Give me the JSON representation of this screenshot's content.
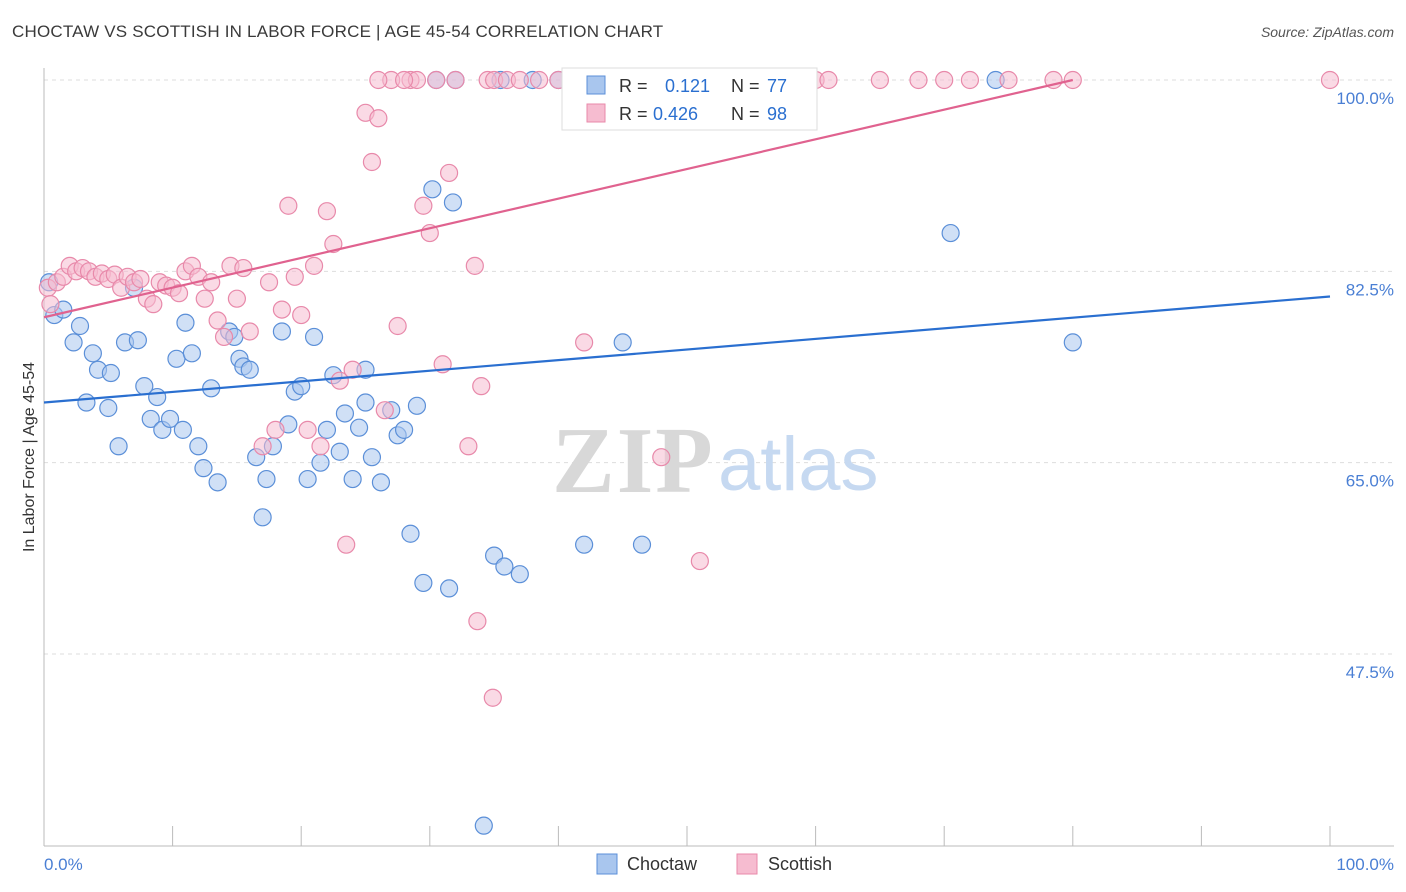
{
  "header": {
    "title": "CHOCTAW VS SCOTTISH IN LABOR FORCE | AGE 45-54 CORRELATION CHART",
    "source": "Source: ZipAtlas.com"
  },
  "watermark": {
    "zip": "ZIP",
    "atlas": "atlas"
  },
  "colors": {
    "choctaw_fill": "#a9c6ee",
    "choctaw_stroke": "#5b8fd8",
    "choctaw_line": "#2a6fd0",
    "scottish_fill": "#f6bcd0",
    "scottish_stroke": "#e889aa",
    "scottish_line": "#e0628f",
    "tick_label": "#4a7fd4",
    "grid": "#dddddd"
  },
  "legend": {
    "rows": [
      {
        "r_label": "R = ",
        "r_value": "0.121",
        "n_label": "N = ",
        "n_value": "77"
      },
      {
        "r_label": "R = ",
        "r_value": "0.426",
        "n_label": "N = ",
        "n_value": "98"
      }
    ]
  },
  "bottom_legend": {
    "items": [
      "Choctaw",
      "Scottish"
    ]
  },
  "chart_data": {
    "type": "scatter",
    "title": "CHOCTAW VS SCOTTISH IN LABOR FORCE | AGE 45-54 CORRELATION CHART",
    "xlabel": "",
    "ylabel": "In Labor Force | Age 45-54",
    "xlim": [
      0,
      100
    ],
    "ylim": [
      31,
      102
    ],
    "x_tick_labels": [
      "0.0%",
      "100.0%"
    ],
    "y_ticks": [
      47.5,
      65.0,
      82.5,
      100.0
    ],
    "y_tick_labels": [
      "47.5%",
      "65.0%",
      "82.5%",
      "100.0%"
    ],
    "grid": true,
    "legend_position": "top-center",
    "series": [
      {
        "name": "Choctaw",
        "trend": {
          "x": [
            0,
            100
          ],
          "y": [
            70.5,
            80.2
          ]
        },
        "points": [
          [
            0.4,
            81.5
          ],
          [
            0.8,
            78.5
          ],
          [
            1.5,
            79.0
          ],
          [
            2.3,
            76.0
          ],
          [
            2.8,
            77.5
          ],
          [
            3.8,
            75.0
          ],
          [
            4.2,
            73.5
          ],
          [
            5.0,
            70.0
          ],
          [
            5.2,
            73.2
          ],
          [
            3.3,
            70.5
          ],
          [
            5.8,
            66.5
          ],
          [
            6.3,
            76.0
          ],
          [
            7.0,
            81.0
          ],
          [
            7.3,
            76.2
          ],
          [
            7.8,
            72.0
          ],
          [
            8.3,
            69.0
          ],
          [
            8.8,
            71.0
          ],
          [
            9.2,
            68.0
          ],
          [
            9.8,
            69.0
          ],
          [
            10.3,
            74.5
          ],
          [
            10.8,
            68.0
          ],
          [
            11.0,
            77.8
          ],
          [
            11.5,
            75.0
          ],
          [
            12.0,
            66.5
          ],
          [
            12.4,
            64.5
          ],
          [
            13.0,
            71.8
          ],
          [
            13.5,
            63.2
          ],
          [
            14.4,
            77.0
          ],
          [
            14.8,
            76.5
          ],
          [
            15.2,
            74.5
          ],
          [
            15.5,
            73.8
          ],
          [
            16.0,
            73.5
          ],
          [
            16.5,
            65.5
          ],
          [
            17.0,
            60.0
          ],
          [
            17.3,
            63.5
          ],
          [
            17.8,
            66.5
          ],
          [
            18.5,
            77.0
          ],
          [
            19.0,
            68.5
          ],
          [
            19.5,
            71.5
          ],
          [
            20.0,
            72.0
          ],
          [
            20.5,
            63.5
          ],
          [
            21.0,
            76.5
          ],
          [
            21.5,
            65.0
          ],
          [
            22.0,
            68.0
          ],
          [
            22.5,
            73.0
          ],
          [
            23.0,
            66.0
          ],
          [
            23.4,
            69.5
          ],
          [
            24.0,
            63.5
          ],
          [
            24.5,
            68.2
          ],
          [
            25.0,
            70.5
          ],
          [
            25.5,
            65.5
          ],
          [
            26.2,
            63.2
          ],
          [
            27.0,
            69.8
          ],
          [
            27.5,
            67.5
          ],
          [
            28.0,
            68.0
          ],
          [
            28.5,
            58.5
          ],
          [
            29.0,
            70.2
          ],
          [
            29.5,
            54.0
          ],
          [
            30.2,
            90.0
          ],
          [
            31.5,
            53.5
          ],
          [
            31.8,
            88.8
          ],
          [
            35.0,
            56.5
          ],
          [
            35.8,
            55.5
          ],
          [
            37.0,
            54.8
          ],
          [
            42.0,
            57.5
          ],
          [
            45.0,
            76.0
          ],
          [
            70.5,
            86.0
          ],
          [
            80.0,
            76.0
          ],
          [
            46.5,
            57.5
          ],
          [
            32.0,
            100.0
          ],
          [
            30.5,
            100.0
          ],
          [
            35.5,
            100.0
          ],
          [
            38.0,
            100.0
          ],
          [
            74.0,
            100.0
          ],
          [
            40.0,
            100.0
          ],
          [
            34.2,
            31.8
          ],
          [
            25.0,
            73.5
          ]
        ]
      },
      {
        "name": "Scottish",
        "trend": {
          "x": [
            0,
            80
          ],
          "y": [
            78.3,
            100.0
          ]
        },
        "points": [
          [
            0.3,
            81.0
          ],
          [
            0.5,
            79.5
          ],
          [
            1.0,
            81.5
          ],
          [
            1.5,
            82.0
          ],
          [
            2.0,
            83.0
          ],
          [
            2.5,
            82.5
          ],
          [
            3.0,
            82.8
          ],
          [
            3.5,
            82.5
          ],
          [
            4.0,
            82.0
          ],
          [
            4.5,
            82.3
          ],
          [
            5.0,
            81.8
          ],
          [
            5.5,
            82.2
          ],
          [
            6.0,
            81.0
          ],
          [
            6.5,
            82.0
          ],
          [
            7.0,
            81.5
          ],
          [
            7.5,
            81.8
          ],
          [
            8.0,
            80.0
          ],
          [
            8.5,
            79.5
          ],
          [
            9.0,
            81.5
          ],
          [
            9.5,
            81.2
          ],
          [
            10.0,
            81.0
          ],
          [
            10.5,
            80.5
          ],
          [
            11.0,
            82.5
          ],
          [
            11.5,
            83.0
          ],
          [
            12.0,
            82.0
          ],
          [
            12.5,
            80.0
          ],
          [
            13.0,
            81.5
          ],
          [
            13.5,
            78.0
          ],
          [
            14.0,
            76.5
          ],
          [
            14.5,
            83.0
          ],
          [
            15.0,
            80.0
          ],
          [
            15.5,
            82.8
          ],
          [
            16.0,
            77.0
          ],
          [
            17.0,
            66.5
          ],
          [
            17.5,
            81.5
          ],
          [
            18.0,
            68.0
          ],
          [
            18.5,
            79.0
          ],
          [
            19.0,
            88.5
          ],
          [
            19.5,
            82.0
          ],
          [
            20.0,
            78.5
          ],
          [
            20.5,
            68.0
          ],
          [
            21.0,
            83.0
          ],
          [
            21.5,
            66.5
          ],
          [
            22.0,
            88.0
          ],
          [
            22.5,
            85.0
          ],
          [
            23.0,
            72.5
          ],
          [
            23.5,
            57.5
          ],
          [
            24.0,
            73.5
          ],
          [
            25.0,
            97.0
          ],
          [
            25.5,
            92.5
          ],
          [
            26.0,
            96.5
          ],
          [
            26.5,
            69.8
          ],
          [
            27.0,
            100.0
          ],
          [
            27.5,
            77.5
          ],
          [
            28.5,
            100.0
          ],
          [
            29.0,
            100.0
          ],
          [
            29.5,
            88.5
          ],
          [
            30.0,
            86.0
          ],
          [
            30.5,
            100.0
          ],
          [
            31.0,
            74.0
          ],
          [
            31.5,
            91.5
          ],
          [
            32.0,
            100.0
          ],
          [
            33.0,
            66.5
          ],
          [
            33.5,
            83.0
          ],
          [
            34.0,
            72.0
          ],
          [
            34.5,
            100.0
          ],
          [
            35.0,
            100.0
          ],
          [
            36.0,
            100.0
          ],
          [
            37.0,
            100.0
          ],
          [
            40.0,
            100.0
          ],
          [
            41.0,
            100.0
          ],
          [
            42.0,
            76.0
          ],
          [
            43.0,
            100.0
          ],
          [
            44.0,
            100.0
          ],
          [
            47.0,
            100.0
          ],
          [
            48.0,
            65.5
          ],
          [
            50.0,
            100.0
          ],
          [
            51.0,
            56.0
          ],
          [
            52.0,
            100.0
          ],
          [
            55.0,
            100.0
          ],
          [
            57.0,
            100.0
          ],
          [
            60.0,
            100.0
          ],
          [
            65.0,
            100.0
          ],
          [
            72.0,
            100.0
          ],
          [
            75.0,
            100.0
          ],
          [
            78.5,
            100.0
          ],
          [
            80.0,
            100.0
          ],
          [
            100.0,
            100.0
          ],
          [
            33.7,
            50.5
          ],
          [
            34.9,
            43.5
          ],
          [
            28.0,
            100.0
          ],
          [
            26.0,
            100.0
          ],
          [
            38.5,
            100.0
          ],
          [
            45.0,
            100.0
          ],
          [
            55.5,
            100.0
          ],
          [
            61.0,
            100.0
          ],
          [
            68.0,
            100.0
          ],
          [
            70.0,
            100.0
          ]
        ]
      }
    ]
  }
}
